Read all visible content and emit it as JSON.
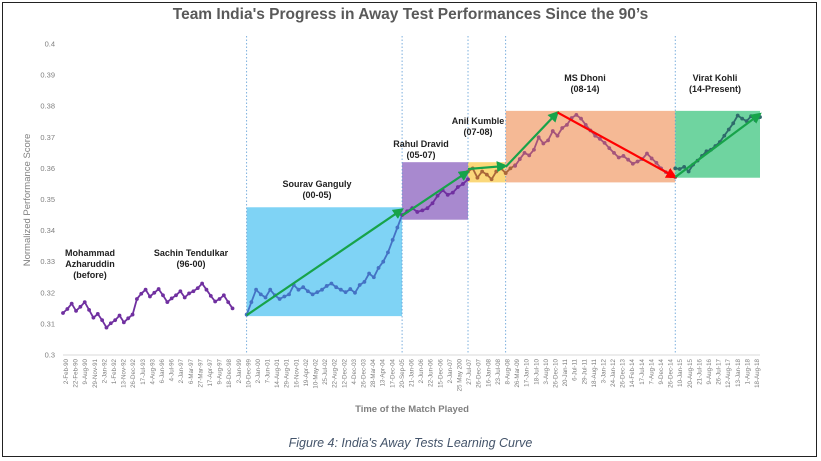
{
  "chart_data": {
    "type": "line",
    "title": "Team India's Progress in Away Test Performances Since the 90’s",
    "caption": "Figure 4: India's Away Tests Learning Curve",
    "xlabel": "Time of the Match Played",
    "ylabel": "Normalized Performance Score",
    "ylim": [
      0.3,
      0.4
    ],
    "yticks": [
      "0.3",
      "0.31",
      "0.32",
      "0.33",
      "0.34",
      "0.35",
      "0.36",
      "0.37",
      "0.38",
      "0.39",
      "0.4"
    ],
    "grid": false,
    "x_tick_labels": [
      "2-Feb-90",
      "22-Feb-90",
      "9-Aug-90",
      "29-Nov-91",
      "2-Jan-92",
      "1-Feb-92",
      "13-Nov-92",
      "26-Dec-92",
      "17-Jul-93",
      "4-Aug-93",
      "6-Jan-96",
      "4-Jul-96",
      "2-Jan-97",
      "6-Mar-97",
      "27-Mar-97",
      "17-Apr-97",
      "9-Aug-97",
      "18-Dec-98",
      "2-Jan-99",
      "10-Dec-99",
      "2-Jan-00",
      "7-Jun-01",
      "14-Aug-01",
      "29-Aug-01",
      "16-Nov-01",
      "19-Apr-02",
      "10-May-02",
      "25-Jul-02",
      "22-Aug-02",
      "12-Dec-02",
      "4-Dec-03",
      "26-Dec-03",
      "28-Mar-04",
      "13-Apr-04",
      "17-Dec-04",
      "20-Sep-05",
      "21-Jan-06",
      "2-Jun-06",
      "22-Jun-06",
      "15-Dec-06",
      "2-Jan-07",
      "25 May 200",
      "27-Jul-07",
      "26-Dec-07",
      "16-Jan-08",
      "23-Jul-08",
      "8-Aug-08",
      "26-Mar-09",
      "17-Jan-10",
      "18-Jul-10",
      "3-Aug-10",
      "26-Dec-10",
      "20-Jan-11",
      "6-Jul-11",
      "29-Jul-11",
      "18-Aug-11",
      "3-Jan-12",
      "24-Jan-12",
      "26-Dec-13",
      "14-Feb-14",
      "17-Jul-14",
      "7-Aug-14",
      "9-Dec-14",
      "26-Dec-14",
      "10-Jan-15",
      "20-Aug-15",
      "21-Jul-16",
      "9-Aug-16",
      "26-Jul-17",
      "12-Aug-17",
      "13-Jan-18",
      "1-Aug-18",
      "18-Aug-18"
    ],
    "series": [
      {
        "name": "Mohammad Azharuddin / Sachin Tendulkar",
        "color": "#7030a0",
        "x_range": [
          0,
          36
        ],
        "values": [
          0.3135,
          0.3148,
          0.3165,
          0.3142,
          0.3155,
          0.317,
          0.3145,
          0.312,
          0.3132,
          0.3112,
          0.3088,
          0.3102,
          0.3112,
          0.3127,
          0.3105,
          0.3118,
          0.313,
          0.318,
          0.3197,
          0.321,
          0.3188,
          0.32,
          0.3212,
          0.3192,
          0.317,
          0.3182,
          0.3192,
          0.3205,
          0.3185,
          0.3198,
          0.3205,
          0.3215,
          0.323,
          0.321,
          0.319,
          0.3172,
          0.318,
          0.3192,
          0.317,
          0.315
        ]
      },
      {
        "name": "Sourav Ganguly",
        "color": "#4472c4",
        "x_range": [
          39,
          72
        ],
        "values": [
          0.313,
          0.317,
          0.321,
          0.3195,
          0.3185,
          0.321,
          0.3192,
          0.318,
          0.3188,
          0.3195,
          0.3225,
          0.321,
          0.3218,
          0.3205,
          0.3195,
          0.3202,
          0.321,
          0.3222,
          0.323,
          0.3218,
          0.321,
          0.3202,
          0.3212,
          0.32,
          0.3225,
          0.3235,
          0.3262,
          0.325,
          0.328,
          0.33,
          0.333,
          0.337,
          0.341,
          0.345
        ]
      },
      {
        "name": "Rahul Dravid",
        "color": "#7030a0",
        "x_range": [
          72,
          86
        ],
        "values": [
          0.345,
          0.3462,
          0.3472,
          0.346,
          0.3465,
          0.3472,
          0.3488,
          0.3512,
          0.353,
          0.3515,
          0.3522,
          0.354,
          0.355,
          0.3565
        ]
      },
      {
        "name": "Anil Kumble",
        "color": "#a9673a",
        "x_range": [
          86,
          96
        ],
        "values": [
          0.359,
          0.36,
          0.357,
          0.359,
          0.358,
          0.3565,
          0.359,
          0.36,
          0.3585,
          0.36,
          0.361
        ]
      },
      {
        "name": "MS Dhoni",
        "color": "#a5547a",
        "x_range": [
          96,
          130
        ],
        "values": [
          0.3608,
          0.363,
          0.365,
          0.3642,
          0.366,
          0.37,
          0.368,
          0.369,
          0.372,
          0.3705,
          0.373,
          0.374,
          0.3762,
          0.3772,
          0.376,
          0.374,
          0.3722,
          0.3705,
          0.3695,
          0.3682,
          0.3665,
          0.365,
          0.3635,
          0.364,
          0.3628,
          0.3615,
          0.3622,
          0.363,
          0.3648,
          0.3632,
          0.3618,
          0.36,
          0.3588,
          0.3575,
          0.3572
        ]
      },
      {
        "name": "Virat Kohli",
        "color": "#2e6b6b",
        "x_range": [
          130,
          148
        ],
        "values": [
          0.36,
          0.3598,
          0.3605,
          0.359,
          0.3612,
          0.3625,
          0.364,
          0.3655,
          0.366,
          0.3672,
          0.3685,
          0.3705,
          0.3725,
          0.3745,
          0.377,
          0.376,
          0.3752,
          0.3768,
          0.3755,
          0.3765
        ]
      }
    ],
    "eras": [
      {
        "name": "Mohammad Azharuddin (before)",
        "line1": "Mohammad",
        "line2": "Azharuddin",
        "line3": "(before)",
        "color": "none",
        "x_range": [
          0,
          18
        ],
        "y_range": null
      },
      {
        "name": "Sachin Tendulkar (96-00)",
        "line1": "Sachin Tendulkar",
        "line2": "(96-00)",
        "color": "none",
        "x_range": [
          18,
          39
        ],
        "y_range": null
      },
      {
        "name": "Sourav Ganguly (00-05)",
        "line1": "Sourav Ganguly",
        "line2": "(00-05)",
        "color": "#7fd3f5",
        "x_range": [
          39,
          72
        ],
        "y_range": [
          0.3125,
          0.3475
        ]
      },
      {
        "name": "Rahul Dravid (05-07)",
        "line1": "Rahul Dravid",
        "line2": "(05-07)",
        "color": "#a889cf",
        "x_range": [
          72,
          86
        ],
        "y_range": [
          0.3435,
          0.362
        ]
      },
      {
        "name": "Anil Kumble (07-08)",
        "line1": "Anil Kumble",
        "line2": "(07-08)",
        "color": "#fbd87a",
        "x_range": [
          86,
          94
        ],
        "y_range": [
          0.3555,
          0.362
        ]
      },
      {
        "name": "MS Dhoni (08-14)",
        "line1": "MS Dhoni",
        "line2": "(08-14)",
        "color": "#f5b995",
        "x_range": [
          94,
          130
        ],
        "y_range": [
          0.3555,
          0.3785
        ]
      },
      {
        "name": "Virat Kohli (14-Present)",
        "line1": "Virat Kohli",
        "line2": "(14-Present)",
        "color": "#6fd4a0",
        "x_range": [
          130,
          148
        ],
        "y_range": [
          0.357,
          0.3785
        ]
      }
    ],
    "trend_arrows": [
      {
        "name": "ganguly-trend",
        "color": "#17a34a",
        "from": [
          39,
          0.3128
        ],
        "to": [
          72,
          0.3468
        ]
      },
      {
        "name": "dravid-trend",
        "color": "#17a34a",
        "from": [
          72,
          0.3448
        ],
        "to": [
          86,
          0.359
        ]
      },
      {
        "name": "kumble-trend",
        "color": "#17a34a",
        "from": [
          86,
          0.3598
        ],
        "to": [
          94,
          0.3608
        ]
      },
      {
        "name": "dhoni-up-trend",
        "color": "#17a34a",
        "from": [
          94,
          0.3605
        ],
        "to": [
          105,
          0.378
        ]
      },
      {
        "name": "dhoni-down-trend",
        "color": "#ff0000",
        "from": [
          105,
          0.378
        ],
        "to": [
          130,
          0.3572
        ]
      },
      {
        "name": "kohli-trend",
        "color": "#17a34a",
        "from": [
          130,
          0.3572
        ],
        "to": [
          148,
          0.3775
        ]
      }
    ],
    "era_dividers_x": [
      39,
      72,
      86,
      94,
      130
    ],
    "x_total": 149
  }
}
